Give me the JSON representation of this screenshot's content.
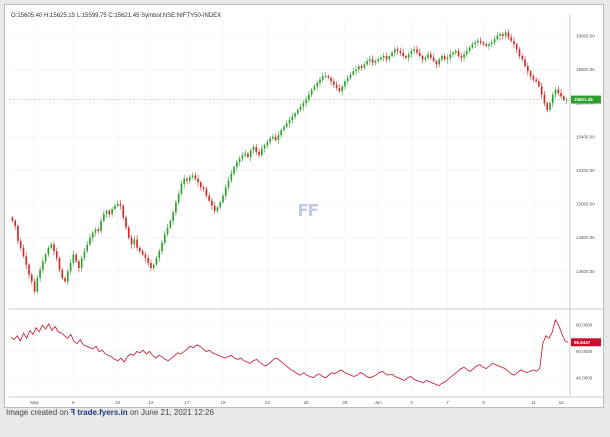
{
  "header": {
    "ohlc_text": "O:15605.40 H:15625.15 L:15599.75 C:15621.45 Symbol:NSE:NIFTY50-INDEX"
  },
  "footer": {
    "prefix": "Image created on",
    "brand": "fyers.in",
    "brand_pre": "trade.",
    "suffix": "on June 21, 2021 12:26"
  },
  "colors": {
    "up": "#2ca02c",
    "down": "#d62728",
    "rsi": "#c8102e",
    "grid": "#eeeeee",
    "axis": "#bbbbbb",
    "watermark": "#c4cbe6"
  },
  "chart_data": [
    {
      "type": "candlestick",
      "ylim": [
        14400,
        16100
      ],
      "yticks": [
        14600,
        14800,
        15000,
        15200,
        15400,
        15600,
        15800,
        16000
      ],
      "ytick_labels": [
        "14600.00",
        "14800.00",
        "15000.00",
        "15200.00",
        "15400.00",
        "15600.00",
        "15800.00",
        "16000.00"
      ],
      "last_price_label": "15621.45",
      "x_ticks": [
        {
          "i": 8,
          "label": "May"
        },
        {
          "i": 22,
          "label": "5"
        },
        {
          "i": 38,
          "label": "10"
        },
        {
          "i": 50,
          "label": "12"
        },
        {
          "i": 63,
          "label": "17"
        },
        {
          "i": 76,
          "label": "19"
        },
        {
          "i": 92,
          "label": "24"
        },
        {
          "i": 106,
          "label": "26"
        },
        {
          "i": 120,
          "label": "28"
        },
        {
          "i": 132,
          "label": "Jun"
        },
        {
          "i": 144,
          "label": "3"
        },
        {
          "i": 157,
          "label": "7"
        },
        {
          "i": 170,
          "label": "9"
        },
        {
          "i": 188,
          "label": "11"
        },
        {
          "i": 198,
          "label": "16"
        },
        {
          "i": 218,
          "label": "21"
        }
      ],
      "closes": [
        14900,
        14870,
        14780,
        14740,
        14690,
        14640,
        14580,
        14540,
        14480,
        14560,
        14610,
        14660,
        14700,
        14740,
        14760,
        14720,
        14680,
        14610,
        14560,
        14540,
        14600,
        14650,
        14700,
        14660,
        14620,
        14680,
        14720,
        14760,
        14800,
        14830,
        14850,
        14840,
        14900,
        14940,
        14960,
        14940,
        14970,
        14990,
        15000,
        14990,
        14920,
        14860,
        14800,
        14760,
        14790,
        14740,
        14720,
        14700,
        14680,
        14650,
        14620,
        14640,
        14680,
        14720,
        14770,
        14820,
        14860,
        14900,
        14950,
        15010,
        15060,
        15120,
        15150,
        15140,
        15160,
        15170,
        15150,
        15130,
        15100,
        15090,
        15050,
        15020,
        14990,
        14960,
        14980,
        15010,
        15050,
        15100,
        15140,
        15180,
        15220,
        15250,
        15270,
        15290,
        15300,
        15280,
        15320,
        15340,
        15310,
        15290,
        15330,
        15350,
        15370,
        15390,
        15400,
        15380,
        15410,
        15440,
        15460,
        15480,
        15500,
        15520,
        15540,
        15560,
        15580,
        15600,
        15620,
        15650,
        15680,
        15700,
        15720,
        15740,
        15760,
        15760,
        15750,
        15730,
        15710,
        15690,
        15670,
        15700,
        15730,
        15750,
        15770,
        15790,
        15800,
        15820,
        15810,
        15830,
        15850,
        15860,
        15840,
        15850,
        15860,
        15870,
        15880,
        15860,
        15880,
        15900,
        15920,
        15910,
        15900,
        15880,
        15870,
        15890,
        15910,
        15920,
        15900,
        15880,
        15860,
        15870,
        15890,
        15870,
        15850,
        15830,
        15860,
        15880,
        15860,
        15870,
        15890,
        15900,
        15910,
        15880,
        15870,
        15890,
        15910,
        15930,
        15950,
        15960,
        15970,
        15960,
        15950,
        15940,
        15950,
        15960,
        15980,
        16000,
        16010,
        16000,
        16020,
        15990,
        15970,
        15950,
        15920,
        15880,
        15860,
        15820,
        15790,
        15760,
        15740,
        15730,
        15700,
        15650,
        15600,
        15560,
        15600,
        15650,
        15680,
        15660,
        15640,
        15620,
        15621
      ],
      "open_first": 14920
    },
    {
      "type": "line",
      "ylim": [
        30,
        90
      ],
      "yticks": [
        40,
        60,
        80
      ],
      "ytick_labels": [
        "40.0000",
        "60.0000",
        "80.0000"
      ],
      "last_value_label": "66.6447",
      "values": [
        71,
        69,
        72,
        68,
        74,
        70,
        76,
        73,
        78,
        75,
        80,
        77,
        81,
        76,
        79,
        75,
        74,
        72,
        70,
        73,
        68,
        66,
        69,
        65,
        64,
        63,
        62,
        64,
        60,
        61,
        58,
        57,
        56,
        54,
        53,
        55,
        52,
        56,
        58,
        57,
        60,
        59,
        61,
        58,
        60,
        57,
        55,
        57,
        56,
        54,
        53,
        55,
        57,
        59,
        58,
        60,
        62,
        64,
        63,
        65,
        64,
        62,
        60,
        61,
        59,
        58,
        57,
        56,
        55,
        56,
        57,
        55,
        54,
        55,
        53,
        52,
        51,
        53,
        54,
        52,
        50,
        49,
        51,
        53,
        55,
        54,
        52,
        50,
        48,
        46,
        45,
        43,
        42,
        44,
        42,
        41,
        40,
        42,
        43,
        41,
        40,
        42,
        44,
        43,
        45,
        46,
        44,
        43,
        42,
        41,
        42,
        44,
        43,
        41,
        40,
        41,
        42,
        44,
        45,
        43,
        42,
        43,
        41,
        40,
        39,
        38,
        40,
        41,
        39,
        38,
        37,
        36,
        38,
        37,
        36,
        35,
        34,
        36,
        37,
        39,
        41,
        43,
        45,
        47,
        48,
        46,
        45,
        47,
        49,
        50,
        48,
        47,
        49,
        51,
        50,
        49,
        48,
        47,
        45,
        43,
        42,
        44,
        46,
        45,
        44,
        45,
        46,
        45,
        47,
        66,
        72,
        70,
        75,
        84,
        80,
        74,
        68,
        67
      ]
    }
  ]
}
